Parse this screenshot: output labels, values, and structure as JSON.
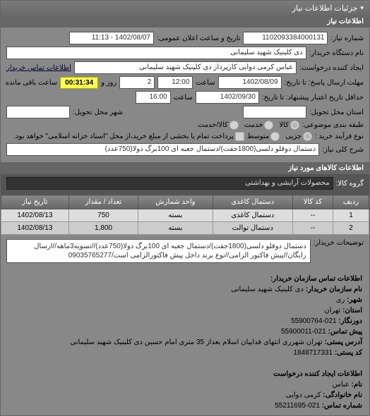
{
  "panel_title": "جزئیات اطلاعات نیاز",
  "info_header": "اطلاعات نیاز",
  "fields": {
    "req_no_label": "شماره نیاز:",
    "req_no": "1102093384000131",
    "announce_label": "تاریخ و ساعت اعلان عمومی:",
    "announce": "1402/08/07 - 11:13",
    "buyer_label": "نام دستگاه خریدار:",
    "buyer": "دی کلینیک شهید سلیمانی",
    "creator_label": "ایجاد کننده درخواست:",
    "creator": "عباس کرمی دوایی کارپرداز دی کلینیک شهید سلیمانی",
    "contact_link": "اطلاعات تماس خریدار",
    "deadline_label": "مهلت ارسال پاسخ: تا تاریخ:",
    "deadline_date": "1402/08/09",
    "time_label": "ساعت",
    "deadline_time": "12:00",
    "days_label": "روز و",
    "days": "2",
    "remaining_label": "ساعت باقی مانده",
    "remaining": "00:31:34",
    "validity_label": "حداقل تاریخ اعتبار پیشنهاد: تا تاریخ:",
    "validity_date": "1402/09/30",
    "validity_time": "16:00",
    "delivery_state_label": "استان محل تحویل:",
    "delivery_state": "",
    "delivery_city_label": "شهر محل تحویل:",
    "delivery_city": "",
    "budget_cat_label": "طبقه بندی موضوعی:",
    "budget_opt1": "کالا",
    "budget_opt2": "خدمت",
    "budget_opt3": "کالا/خدمت",
    "process_label": "نوع فرآیند خرید :",
    "process_opt1": "جزیی",
    "process_opt2": "متوسط",
    "process_note": "پرداخت تمام یا بخشی از مبلغ خرید،از محل \"اسناد خزانه اسلامی\" خواهد بود.",
    "desc_label": "شرح کلی نیاز:",
    "desc": "دستمال دوقلو دلسی(1800جفت)/دستمال جعبه ای 100برگ دولا(750عدد)"
  },
  "items_header": "اطلاعات کالاهای مورد نیاز",
  "group_label": "گروه کالا:",
  "group_value": "محصولات آرایشی و بهداشتی",
  "table": {
    "cols": [
      "ردیف",
      "کد کالا",
      "دستمال کاغذی",
      "واحد شمارش",
      "تعداد / مقدار",
      "تاریخ نیاز"
    ],
    "rows": [
      [
        "1",
        "--",
        "دستمال کاغذی",
        "بسته",
        "750",
        "1402/08/13"
      ],
      [
        "2",
        "--",
        "دستمال توالت",
        "بسته",
        "1,800",
        "1402/08/13"
      ]
    ]
  },
  "buyer_notes_label": "توضیحات خریدار:",
  "buyer_notes": "دستمال دوقلو دلسی(1800جفت)/دستمال جعبه ای 100برگ دولا(750عدد)//تسویه3ماهه//ارسال رایگان//پیش فاکتور الزامی//نوع برند داخل پیش فاکتورالزامی است/09035765277",
  "contact_header": "اطلاعات تماس سازمان خریدار:",
  "contact": {
    "org_label": "نام سازمان خریدار:",
    "org": "دی کلینیک شهید سلیمانی",
    "city_label": "شهر:",
    "city": "ری",
    "province_label": "استان:",
    "province": "تهران",
    "fax_label": "دورنگار:",
    "fax": "021-55900764",
    "phone_label": "پیش تماس:",
    "phone": "021-55900011",
    "postal_label": "آدرس پستی:",
    "postal": "تهران شهرری انتهای فداییان اسلام بعداز 35 متری امام حسین دی کلینیک شهید سلیمانی",
    "postcode_label": "کد پستی:",
    "postcode": "1848717331"
  },
  "creator_header": "اطلاعات ایجاد کننده درخواست",
  "creator_info": {
    "name_label": "نام:",
    "name": "عباس",
    "surname_label": "نام خانوادگی:",
    "surname": "کرمی دوایی",
    "phone_label": "شماره تماس:",
    "phone": "021-55211695"
  }
}
